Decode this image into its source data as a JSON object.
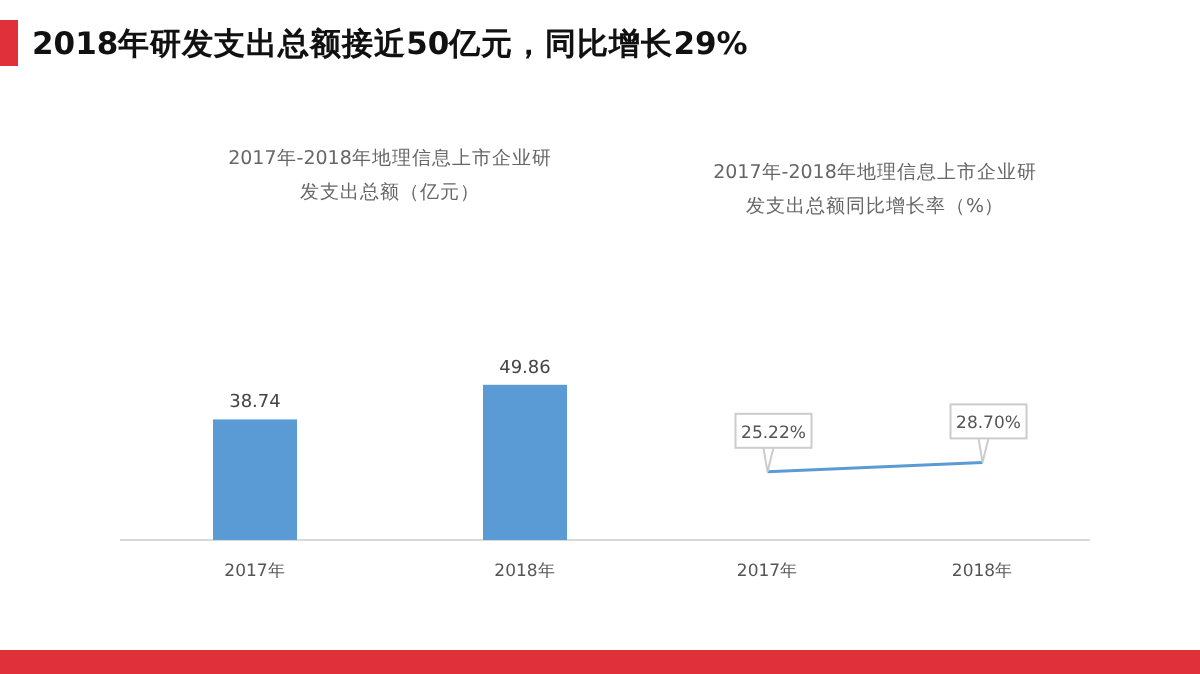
{
  "chart_data": [
    {
      "type": "bar",
      "title": "2018年研发支出总额接近50亿元，同比增长29%",
      "subtitle": "2017年-2018年地理信息上市企业研发支出总额（亿元）",
      "categories": [
        "2017年",
        "2018年"
      ],
      "values": [
        38.74,
        49.86
      ],
      "color": "#5b9bd5",
      "data_labels": true
    },
    {
      "type": "line",
      "subtitle": "2017年-2018年地理信息上市企业研发支出总额同比增长率（%）",
      "categories": [
        "2017年",
        "2018年"
      ],
      "values": [
        25.22,
        28.7
      ],
      "value_labels": [
        "25.22%",
        "28.70%"
      ],
      "color": "#5b9bd5"
    }
  ]
}
